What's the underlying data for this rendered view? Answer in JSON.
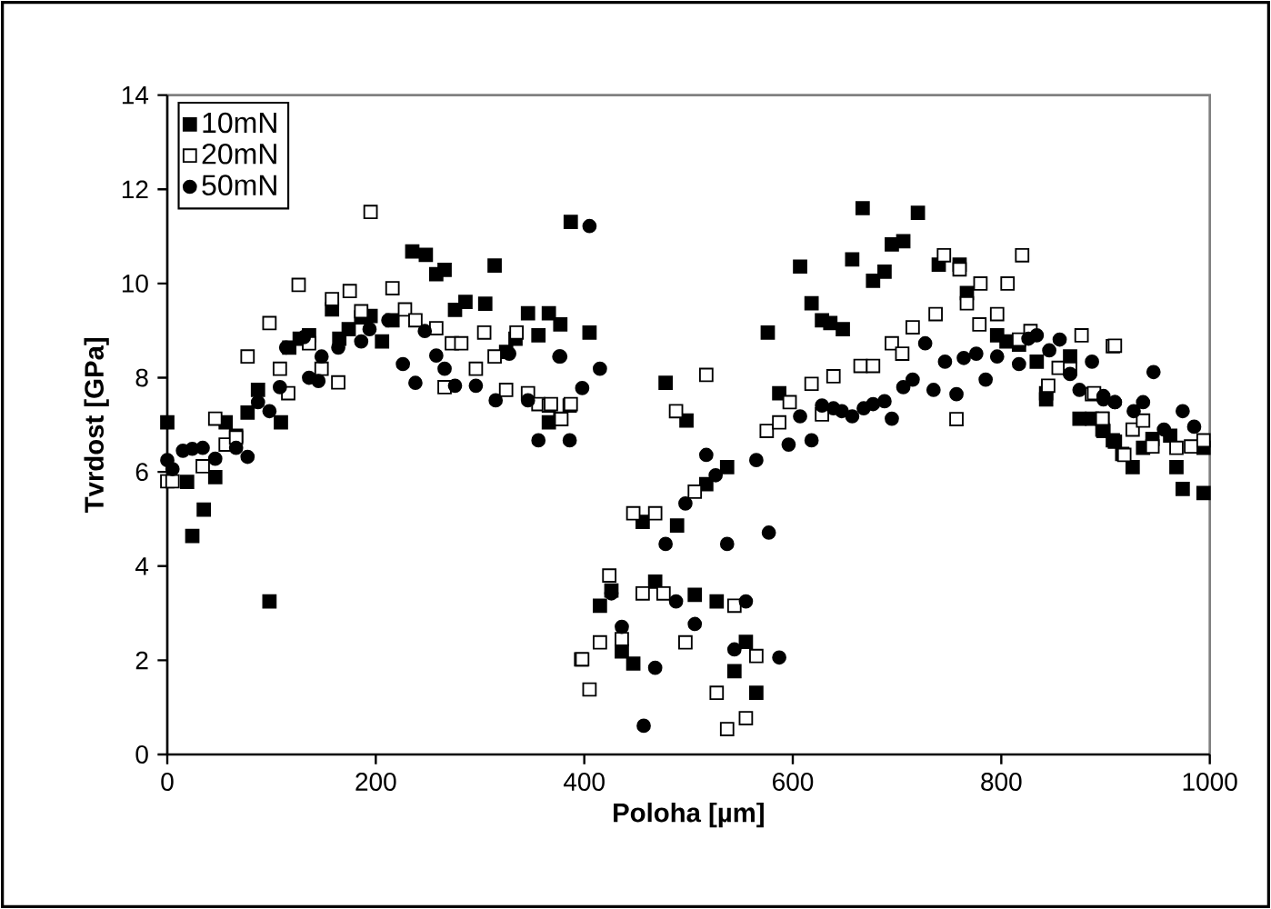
{
  "chart_data": {
    "type": "scatter",
    "xlabel": "Poloha [µm]",
    "ylabel": "Tvrdost [GPa]",
    "xlim": [
      0,
      1000
    ],
    "ylim": [
      0,
      14
    ],
    "xticks": [
      0,
      200,
      400,
      600,
      800,
      1000
    ],
    "yticks": [
      0,
      2,
      4,
      6,
      8,
      10,
      12,
      14
    ],
    "grid": false,
    "legend": "top left",
    "series": [
      {
        "name": "10mN",
        "color": "#000000",
        "marker": "square",
        "x": [
          0,
          19,
          24,
          35,
          46,
          56,
          66,
          77,
          87,
          98,
          109,
          117,
          127,
          136,
          158,
          165,
          174,
          186,
          195,
          206,
          216,
          235,
          248,
          258,
          266,
          276,
          286,
          305,
          314,
          325,
          334,
          346,
          356,
          366,
          377,
          366,
          387,
          405,
          478,
          489,
          456,
          415,
          426,
          436,
          447,
          468,
          506,
          527,
          544,
          555,
          565,
          576,
          587,
          607,
          618,
          628,
          636,
          648,
          657,
          667,
          677,
          688,
          695,
          706,
          720,
          740,
          760,
          517,
          537,
          498,
          767,
          796,
          805,
          817,
          834,
          843,
          843,
          866,
          875,
          887,
          898,
          907,
          916,
          897,
          909,
          926,
          936,
          945,
          962,
          968,
          974,
          994,
          994
        ],
        "values": [
          7.05,
          5.79,
          4.64,
          5.2,
          5.89,
          7.05,
          6.77,
          7.26,
          7.74,
          3.25,
          7.05,
          8.64,
          8.83,
          8.9,
          9.45,
          8.83,
          9.03,
          9.28,
          9.31,
          8.77,
          9.22,
          10.68,
          10.61,
          10.2,
          10.29,
          9.44,
          9.61,
          9.57,
          10.38,
          8.55,
          8.83,
          9.37,
          8.9,
          9.37,
          9.13,
          7.05,
          11.31,
          8.96,
          7.89,
          4.86,
          4.94,
          3.16,
          3.48,
          2.19,
          1.93,
          3.67,
          3.39,
          3.25,
          1.77,
          2.39,
          1.31,
          8.96,
          7.67,
          10.36,
          9.58,
          9.22,
          9.16,
          9.03,
          10.51,
          11.6,
          10.06,
          10.25,
          10.83,
          10.9,
          11.5,
          10.4,
          10.4,
          5.74,
          6.1,
          7.09,
          9.8,
          8.9,
          8.77,
          8.7,
          8.34,
          7.67,
          7.54,
          8.45,
          7.13,
          7.13,
          6.87,
          6.67,
          6.38,
          6.9,
          6.64,
          6.1,
          6.51,
          6.7,
          6.77,
          6.1,
          5.64,
          5.55,
          6.51
        ]
      },
      {
        "name": "20mN",
        "color": "#ffffff",
        "marker": "square",
        "x": [
          0,
          5,
          34,
          46,
          56,
          66,
          77,
          98,
          108,
          116,
          126,
          136,
          148,
          158,
          164,
          175,
          186,
          195,
          216,
          228,
          238,
          258,
          266,
          273,
          282,
          296,
          304,
          314,
          325,
          335,
          346,
          356,
          366,
          377,
          386,
          397,
          368,
          378,
          387,
          517,
          488,
          506,
          447,
          468,
          424,
          456,
          476,
          398,
          415,
          436,
          405,
          497,
          527,
          537,
          555,
          544,
          565,
          575,
          587,
          597,
          618,
          628,
          639,
          665,
          677,
          695,
          705,
          715,
          737,
          745,
          757,
          760,
          767,
          779,
          780,
          796,
          806,
          817,
          820,
          828,
          845,
          855,
          866,
          877,
          887,
          897,
          907,
          909,
          889,
          897,
          918,
          926,
          936,
          945,
          968,
          982,
          994
        ],
        "values": [
          5.8,
          5.8,
          6.12,
          7.13,
          6.58,
          6.73,
          8.45,
          9.16,
          8.19,
          7.67,
          9.97,
          8.73,
          8.19,
          9.67,
          7.9,
          9.84,
          9.41,
          11.52,
          9.9,
          9.45,
          9.22,
          9.05,
          7.8,
          8.73,
          8.73,
          8.19,
          8.96,
          8.45,
          7.74,
          8.96,
          7.67,
          7.44,
          7.41,
          7.13,
          7.41,
          2.02,
          7.44,
          7.12,
          7.44,
          8.06,
          7.29,
          5.58,
          5.12,
          5.12,
          3.8,
          3.42,
          3.42,
          2.02,
          2.38,
          2.45,
          1.38,
          2.38,
          1.31,
          0.54,
          0.77,
          3.16,
          2.09,
          6.87,
          7.05,
          7.48,
          7.87,
          7.22,
          8.03,
          8.25,
          8.25,
          8.73,
          8.51,
          9.07,
          9.35,
          10.6,
          7.12,
          10.3,
          9.58,
          9.13,
          10.0,
          9.35,
          10.0,
          8.81,
          10.6,
          8.99,
          7.83,
          8.21,
          8.19,
          8.9,
          7.65,
          7.13,
          8.67,
          8.68,
          7.67,
          7.13,
          6.36,
          6.9,
          7.09,
          6.54,
          6.51,
          6.54,
          6.67
        ]
      },
      {
        "name": "50mN",
        "color": "#000000",
        "marker": "circle",
        "x": [
          0,
          5,
          15,
          24,
          34,
          46,
          66,
          77,
          87,
          98,
          108,
          114,
          131,
          136,
          145,
          148,
          164,
          186,
          194,
          212,
          226,
          238,
          247,
          258,
          266,
          276,
          296,
          315,
          328,
          346,
          356,
          377,
          386,
          398,
          405,
          376,
          415,
          517,
          526,
          497,
          478,
          537,
          565,
          436,
          468,
          457,
          488,
          506,
          544,
          555,
          426,
          577,
          587,
          596,
          618,
          607,
          628,
          639,
          647,
          657,
          668,
          677,
          688,
          695,
          706,
          715,
          727,
          735,
          746,
          757,
          764,
          776,
          785,
          796,
          817,
          826,
          834,
          846,
          856,
          866,
          875,
          887,
          898,
          909,
          898,
          909,
          927,
          936,
          946,
          956,
          974,
          985
        ],
        "values": [
          6.25,
          6.06,
          6.45,
          6.49,
          6.51,
          6.28,
          6.51,
          6.32,
          7.48,
          7.29,
          7.8,
          8.64,
          8.86,
          8.0,
          7.93,
          8.45,
          8.64,
          8.77,
          9.03,
          9.22,
          8.29,
          7.89,
          8.99,
          8.47,
          8.19,
          7.83,
          7.83,
          7.52,
          8.51,
          7.52,
          6.67,
          8.45,
          6.67,
          7.78,
          11.22,
          8.45,
          8.19,
          6.36,
          5.93,
          5.33,
          4.47,
          4.47,
          6.25,
          2.71,
          1.84,
          0.61,
          3.25,
          2.77,
          2.23,
          3.25,
          3.42,
          4.71,
          2.06,
          6.58,
          6.67,
          7.18,
          7.41,
          7.35,
          7.29,
          7.18,
          7.35,
          7.44,
          7.5,
          7.13,
          7.8,
          7.96,
          8.73,
          7.74,
          8.34,
          7.65,
          8.42,
          8.51,
          7.96,
          8.45,
          8.29,
          8.83,
          8.9,
          8.58,
          8.81,
          8.08,
          7.74,
          8.34,
          7.54,
          7.48,
          7.61,
          7.48,
          7.29,
          7.48,
          8.12,
          6.9,
          7.29,
          6.96
        ]
      }
    ]
  }
}
